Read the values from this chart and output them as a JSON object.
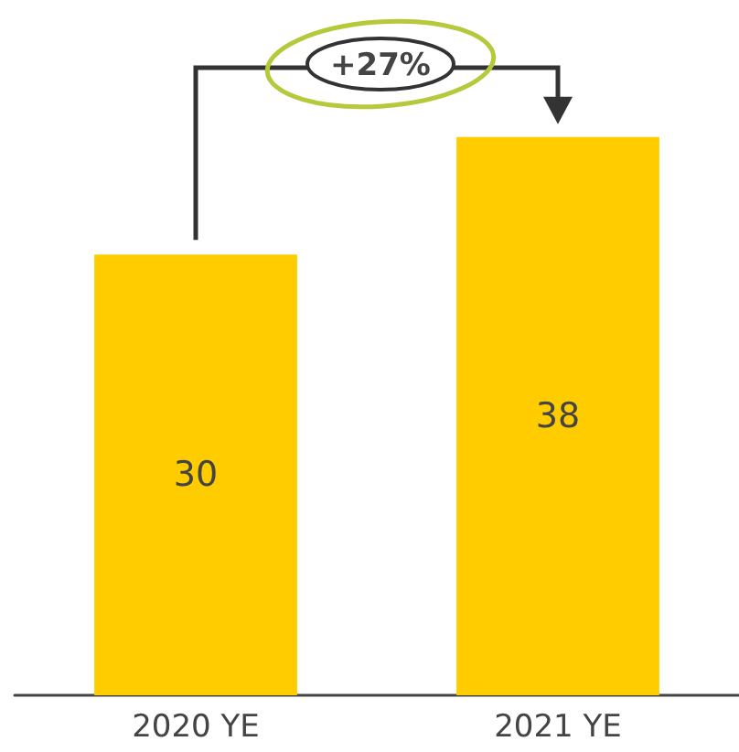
{
  "chart_data": {
    "type": "bar",
    "categories": [
      "2020 YE",
      "2021 YE"
    ],
    "values": [
      30,
      38
    ],
    "color": "#ffcc00",
    "data_labels": true,
    "annotations": [
      "+27%"
    ]
  }
}
